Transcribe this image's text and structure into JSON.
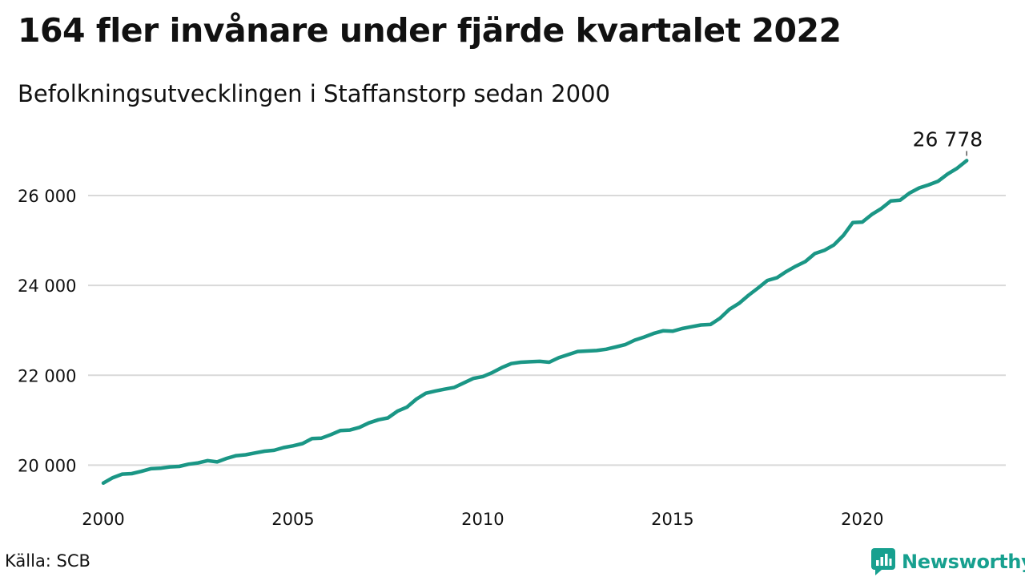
{
  "header": {
    "title": "164 fler invånare under fjärde kvartalet 2022",
    "subtitle": "Befolkningsutvecklingen i Staffanstorp sedan 2000"
  },
  "footer": {
    "source": "Källa: SCB",
    "brand": "Newsworthy"
  },
  "colors": {
    "line": "#1a9685",
    "grid": "#d9d9d9",
    "brand": "#17a08f"
  },
  "chart_data": {
    "type": "line",
    "ylim": [
      19400,
      27000
    ],
    "xlim": [
      2000,
      2023
    ],
    "yticks": [
      20000,
      22000,
      24000,
      26000
    ],
    "ytick_labels": [
      "20 000",
      "22 000",
      "24 000",
      "26 000"
    ],
    "xticks": [
      2000,
      2005,
      2010,
      2015,
      2020
    ],
    "xtick_labels": [
      "2000",
      "2005",
      "2010",
      "2015",
      "2020"
    ],
    "grid": "horizontal",
    "end_label": "26 778",
    "series": [
      {
        "values": [
          [
            2000.0,
            19600
          ],
          [
            2000.25,
            19720
          ],
          [
            2000.5,
            19800
          ],
          [
            2000.75,
            19810
          ],
          [
            2001.0,
            19860
          ],
          [
            2001.25,
            19920
          ],
          [
            2001.5,
            19930
          ],
          [
            2001.75,
            19960
          ],
          [
            2002.0,
            19970
          ],
          [
            2002.25,
            20020
          ],
          [
            2002.5,
            20050
          ],
          [
            2002.75,
            20100
          ],
          [
            2003.0,
            20070
          ],
          [
            2003.25,
            20150
          ],
          [
            2003.5,
            20210
          ],
          [
            2003.75,
            20230
          ],
          [
            2004.0,
            20270
          ],
          [
            2004.25,
            20310
          ],
          [
            2004.5,
            20330
          ],
          [
            2004.75,
            20390
          ],
          [
            2005.0,
            20430
          ],
          [
            2005.25,
            20480
          ],
          [
            2005.5,
            20590
          ],
          [
            2005.75,
            20600
          ],
          [
            2006.0,
            20680
          ],
          [
            2006.25,
            20770
          ],
          [
            2006.5,
            20780
          ],
          [
            2006.75,
            20840
          ],
          [
            2007.0,
            20940
          ],
          [
            2007.25,
            21010
          ],
          [
            2007.5,
            21050
          ],
          [
            2007.75,
            21200
          ],
          [
            2008.0,
            21290
          ],
          [
            2008.25,
            21470
          ],
          [
            2008.5,
            21600
          ],
          [
            2008.75,
            21650
          ],
          [
            2009.0,
            21690
          ],
          [
            2009.25,
            21730
          ],
          [
            2009.5,
            21830
          ],
          [
            2009.75,
            21930
          ],
          [
            2010.0,
            21970
          ],
          [
            2010.25,
            22060
          ],
          [
            2010.5,
            22170
          ],
          [
            2010.75,
            22260
          ],
          [
            2011.0,
            22290
          ],
          [
            2011.25,
            22300
          ],
          [
            2011.5,
            22310
          ],
          [
            2011.75,
            22290
          ],
          [
            2012.0,
            22390
          ],
          [
            2012.25,
            22460
          ],
          [
            2012.5,
            22530
          ],
          [
            2012.75,
            22540
          ],
          [
            2013.0,
            22550
          ],
          [
            2013.25,
            22580
          ],
          [
            2013.5,
            22630
          ],
          [
            2013.75,
            22680
          ],
          [
            2014.0,
            22780
          ],
          [
            2014.25,
            22850
          ],
          [
            2014.5,
            22930
          ],
          [
            2014.75,
            22990
          ],
          [
            2015.0,
            22980
          ],
          [
            2015.25,
            23040
          ],
          [
            2015.5,
            23080
          ],
          [
            2015.75,
            23120
          ],
          [
            2016.0,
            23130
          ],
          [
            2016.25,
            23270
          ],
          [
            2016.5,
            23470
          ],
          [
            2016.75,
            23600
          ],
          [
            2017.0,
            23780
          ],
          [
            2017.25,
            23940
          ],
          [
            2017.5,
            24110
          ],
          [
            2017.75,
            24170
          ],
          [
            2018.0,
            24310
          ],
          [
            2018.25,
            24430
          ],
          [
            2018.5,
            24530
          ],
          [
            2018.75,
            24710
          ],
          [
            2019.0,
            24780
          ],
          [
            2019.25,
            24900
          ],
          [
            2019.5,
            25110
          ],
          [
            2019.75,
            25400
          ],
          [
            2020.0,
            25410
          ],
          [
            2020.25,
            25580
          ],
          [
            2020.5,
            25710
          ],
          [
            2020.75,
            25880
          ],
          [
            2021.0,
            25900
          ],
          [
            2021.25,
            26060
          ],
          [
            2021.5,
            26170
          ],
          [
            2021.75,
            26240
          ],
          [
            2022.0,
            26320
          ],
          [
            2022.25,
            26480
          ],
          [
            2022.5,
            26610
          ],
          [
            2022.75,
            26778
          ]
        ]
      }
    ]
  }
}
